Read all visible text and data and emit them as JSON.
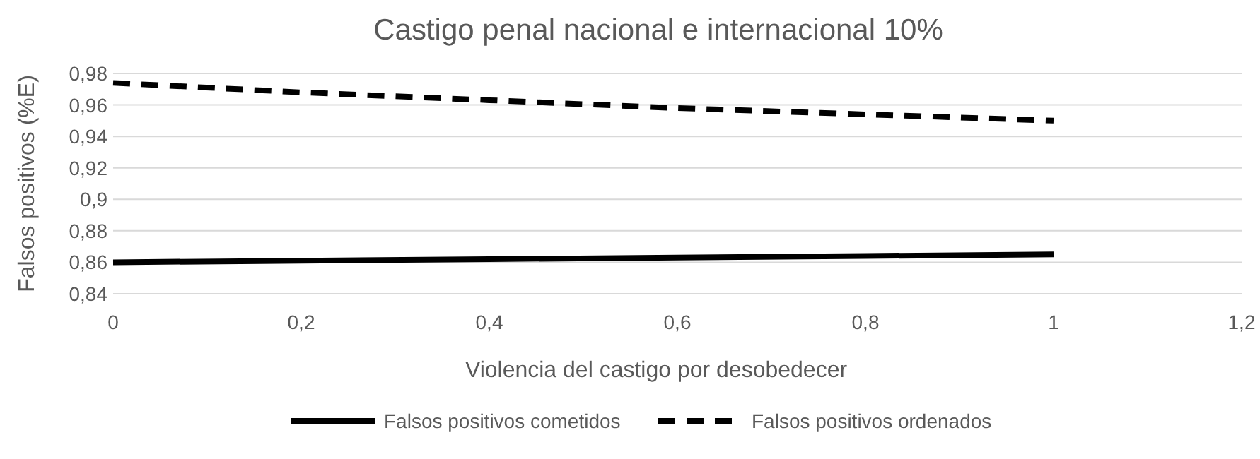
{
  "chart_data": {
    "type": "line",
    "title": "Castigo penal nacional e internacional 10%",
    "xlabel": "Violencia del castigo por desobedecer",
    "ylabel": "Falsos positivos (%E)",
    "x": [
      0,
      0.2,
      0.4,
      0.6,
      0.8,
      1
    ],
    "series": [
      {
        "name": "Falsos positivos cometidos",
        "color": "#000000",
        "line_style": "solid",
        "values": [
          0.86,
          0.861,
          0.862,
          0.863,
          0.864,
          0.865
        ]
      },
      {
        "name": "Falsos positivos ordenados",
        "color": "#000000",
        "line_style": "dashed",
        "values": [
          0.974,
          0.968,
          0.963,
          0.958,
          0.954,
          0.95
        ]
      }
    ],
    "xlim": [
      0,
      1.2
    ],
    "xticks": [
      0,
      {
        "value": 0.2,
        "label": "0,2"
      },
      {
        "value": 0.4,
        "label": "0,4"
      },
      {
        "value": 0.6,
        "label": "0,6"
      },
      {
        "value": 0.8,
        "label": "0,8"
      },
      1,
      {
        "value": 1.2,
        "label": "1,2"
      }
    ],
    "ylim": [
      0.84,
      0.98
    ],
    "yticks": [
      {
        "value": 0.84,
        "label": "0,84"
      },
      {
        "value": 0.86,
        "label": "0,86"
      },
      {
        "value": 0.88,
        "label": "0,88"
      },
      {
        "value": 0.9,
        "label": "0,9"
      },
      {
        "value": 0.92,
        "label": "0,92"
      },
      {
        "value": 0.94,
        "label": "0,94"
      },
      {
        "value": 0.96,
        "label": "0,96"
      },
      {
        "value": 0.98,
        "label": "0,98"
      }
    ],
    "grid": "y",
    "legend": "bottom",
    "marker": "none"
  }
}
